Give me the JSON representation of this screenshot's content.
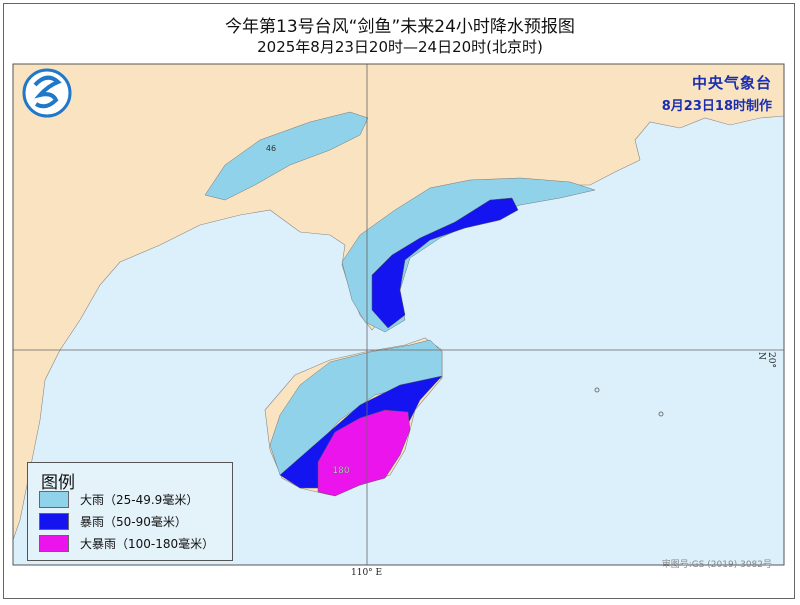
{
  "title": "今年第13号台风“剑鱼”未来24小时降水预报图",
  "subtitle": "2025年8月23日20时—24日20时(北京时)",
  "agency": {
    "name": "中央气象台",
    "issued": "8月23日18时制作"
  },
  "legend": {
    "title": "图例",
    "items": [
      {
        "label": "大雨（25-49.9毫米）",
        "color": "#8fd2ea"
      },
      {
        "label": "暴雨（50-90毫米）",
        "color": "#1414f0"
      },
      {
        "label": "大暴雨（100-180毫米）",
        "color": "#ec14ec"
      }
    ]
  },
  "map": {
    "land_color": "#fae3c0",
    "sea_color": "#dcf0fb",
    "labels": {
      "north_value": "46",
      "hainan_value": "180"
    },
    "grid": {
      "longitude": "110° E",
      "latitude": "20° N"
    },
    "review_number": "审图号:GS (2019) 3082号"
  },
  "logo": "cma-logo"
}
